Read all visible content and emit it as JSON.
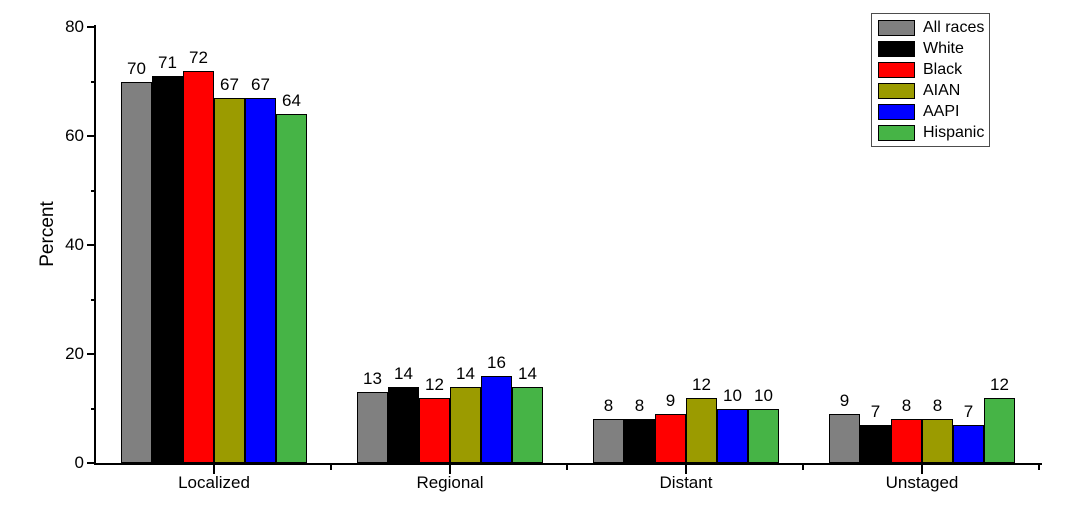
{
  "chart_data": {
    "type": "bar",
    "title": "",
    "xlabel": "",
    "ylabel": "Percent",
    "ylim": [
      0,
      80
    ],
    "yticks": [
      0,
      20,
      40,
      60,
      80
    ],
    "minor_yticks": [
      10,
      30,
      50,
      70
    ],
    "categories": [
      "Localized",
      "Regional",
      "Distant",
      "Unstaged"
    ],
    "series": [
      {
        "name": "All races",
        "color": "#808080",
        "values": [
          70,
          13,
          8,
          9
        ]
      },
      {
        "name": "White",
        "color": "#000000",
        "values": [
          71,
          14,
          8,
          7
        ]
      },
      {
        "name": "Black",
        "color": "#ff0000",
        "values": [
          72,
          12,
          9,
          8
        ]
      },
      {
        "name": "AIAN",
        "color": "#9b9b00",
        "values": [
          67,
          14,
          12,
          8
        ]
      },
      {
        "name": "AAPI",
        "color": "#0000ff",
        "values": [
          67,
          16,
          10,
          7
        ]
      },
      {
        "name": "Hispanic",
        "color": "#46b446",
        "values": [
          64,
          14,
          10,
          12
        ]
      }
    ],
    "bar_value_labels_shown": true,
    "grid": false,
    "legend_position": "top-right"
  }
}
